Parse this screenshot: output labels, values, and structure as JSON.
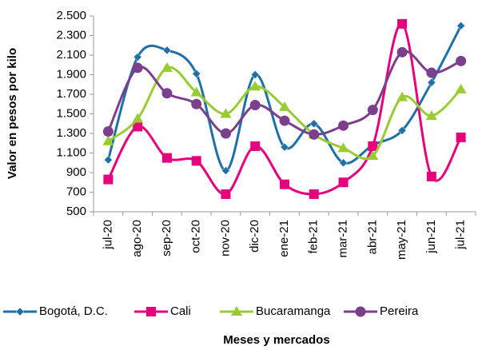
{
  "chart_data": {
    "type": "line",
    "y_label": "Valor en pesos por kilo",
    "x_label": "Meses  y mercados",
    "categories": [
      "jul-20",
      "ago-20",
      "sep-20",
      "oct-20",
      "nov-20",
      "dic-20",
      "ene-21",
      "feb-21",
      "mar-21",
      "abr-21",
      "may-21",
      "jun-21",
      "jul-21"
    ],
    "series": [
      {
        "name": "Bogotá, D.C.",
        "color": "#1f6fa8",
        "marker": "diamond",
        "values": [
          1030,
          2080,
          2150,
          1910,
          920,
          1900,
          1160,
          1400,
          1000,
          1180,
          1330,
          1820,
          2400
        ]
      },
      {
        "name": "Cali",
        "color": "#e6007e",
        "marker": "square",
        "values": [
          830,
          1370,
          1050,
          1020,
          680,
          1170,
          780,
          680,
          800,
          1170,
          2420,
          860,
          1260
        ]
      },
      {
        "name": "Bucaramanga",
        "color": "#99cc33",
        "marker": "triangle",
        "values": [
          1220,
          1450,
          1970,
          1720,
          1500,
          1780,
          1570,
          1290,
          1150,
          1070,
          1670,
          1480,
          1750
        ]
      },
      {
        "name": "Pereira",
        "color": "#7b3f8c",
        "marker": "circle",
        "values": [
          1320,
          1970,
          1710,
          1600,
          1300,
          1590,
          1430,
          1290,
          1380,
          1540,
          2130,
          1920,
          2040
        ]
      }
    ],
    "ylim": [
      500,
      2500
    ],
    "yticks": [
      500,
      700,
      900,
      {
        "value": 1100,
        "label": "1.100"
      },
      {
        "value": 1300,
        "label": "1.300"
      },
      {
        "value": 1500,
        "label": "1.500"
      },
      {
        "value": 1700,
        "label": "1.700"
      },
      {
        "value": 1900,
        "label": "1.900"
      },
      {
        "value": 2100,
        "label": "2.100"
      },
      {
        "value": 2300,
        "label": "2.300"
      },
      {
        "value": 2500,
        "label": "2.500"
      }
    ],
    "smooth": true,
    "legend": "bottom"
  }
}
